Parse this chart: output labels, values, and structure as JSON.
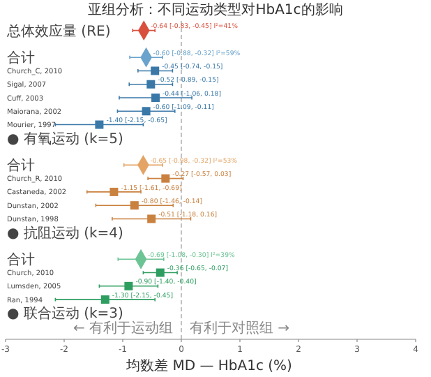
{
  "chart_data": {
    "type": "scatter",
    "orientation": "horizontal",
    "title": "亚组分析：不同运动类型对HbA1c的影响",
    "xlabel": "均数差 MD — HbA1c (%)",
    "annotations": [
      "← 有利于运动组",
      "有利于对照组 →"
    ],
    "categories": [
      "总体效应量 (RE)",
      null,
      "合计",
      "Church_C, 2010",
      "Sigal, 2007",
      "Cuff, 2003",
      "Maiorana, 2002",
      "Mourier, 1997",
      "● 有氧运动 (k=5)",
      null,
      "合计",
      "Church_R, 2010",
      "Castaneda, 2002",
      "Dunstan, 2002",
      "Dunstan, 1998",
      "● 抗阻运动 (k=4)",
      null,
      "合计",
      "Church, 2010",
      "Lumsden, 2005",
      "Ran, 1994",
      "● 联合运动 (k=3)"
    ],
    "series": [
      {
        "color": "#d94f3d",
        "marker": "diamond",
        "values": [
          -0.64,
          null,
          null,
          null,
          null,
          null,
          null,
          null,
          null,
          null,
          null,
          null,
          null,
          null,
          null,
          null,
          null,
          null,
          null,
          null,
          null,
          null
        ],
        "errors": [
          [
            -0.83,
            -0.45
          ],
          null,
          null,
          null,
          null,
          null,
          null,
          null,
          null,
          null,
          null,
          null,
          null,
          null,
          null,
          null,
          null,
          null,
          null,
          null,
          null,
          null
        ],
        "value_labels": [
          "-0.64 [-0.83, -0.45]  I²=41%",
          null,
          null,
          null,
          null,
          null,
          null,
          null,
          null,
          null,
          null,
          null,
          null,
          null,
          null,
          null,
          null,
          null,
          null,
          null,
          null,
          null
        ]
      },
      {
        "color": "#6aa3cc",
        "marker": "diamond",
        "values": [
          null,
          null,
          -0.6,
          null,
          null,
          null,
          null,
          null,
          null,
          null,
          null,
          null,
          null,
          null,
          null,
          null,
          null,
          null,
          null,
          null,
          null,
          null
        ],
        "errors": [
          null,
          null,
          [
            -0.88,
            -0.32
          ],
          null,
          null,
          null,
          null,
          null,
          null,
          null,
          null,
          null,
          null,
          null,
          null,
          null,
          null,
          null,
          null,
          null,
          null,
          null
        ],
        "value_labels": [
          null,
          null,
          "-0.60 [-0.88, -0.32]  I²=59%",
          null,
          null,
          null,
          null,
          null,
          null,
          null,
          null,
          null,
          null,
          null,
          null,
          null,
          null,
          null,
          null,
          null,
          null,
          null
        ]
      },
      {
        "color": "#3a78a8",
        "marker": "square",
        "values": [
          null,
          null,
          null,
          -0.45,
          -0.52,
          -0.44,
          -0.6,
          -1.4,
          null,
          null,
          null,
          null,
          null,
          null,
          null,
          null,
          null,
          null,
          null,
          null,
          null,
          null
        ],
        "errors": [
          null,
          null,
          null,
          [
            -0.74,
            -0.15
          ],
          [
            -0.89,
            -0.15
          ],
          [
            -1.06,
            0.18
          ],
          [
            -1.09,
            -0.11
          ],
          [
            -2.15,
            -0.65
          ],
          null,
          null,
          null,
          null,
          null,
          null,
          null,
          null,
          null,
          null,
          null,
          null,
          null,
          null
        ],
        "value_labels": [
          null,
          null,
          null,
          "-0.45 [-0.74, -0.15]",
          "-0.52 [-0.89, -0.15]",
          "-0.44 [-1.06, 0.18]",
          "-0.60 [-1.09, -0.11]",
          "-1.40 [-2.15, -0.65]",
          null,
          null,
          null,
          null,
          null,
          null,
          null,
          null,
          null,
          null,
          null,
          null,
          null,
          null
        ]
      },
      {
        "color": "#e3a465",
        "marker": "diamond",
        "values": [
          null,
          null,
          null,
          null,
          null,
          null,
          null,
          null,
          null,
          null,
          -0.65,
          null,
          null,
          null,
          null,
          null,
          null,
          null,
          null,
          null,
          null,
          null
        ],
        "errors": [
          null,
          null,
          null,
          null,
          null,
          null,
          null,
          null,
          null,
          null,
          [
            -0.98,
            -0.32
          ],
          null,
          null,
          null,
          null,
          null,
          null,
          null,
          null,
          null,
          null,
          null
        ],
        "value_labels": [
          null,
          null,
          null,
          null,
          null,
          null,
          null,
          null,
          null,
          null,
          "-0.65 [-0.98, -0.32]  I²=53%",
          null,
          null,
          null,
          null,
          null,
          null,
          null,
          null,
          null,
          null,
          null
        ]
      },
      {
        "color": "#c9813f",
        "marker": "square",
        "values": [
          null,
          null,
          null,
          null,
          null,
          null,
          null,
          null,
          null,
          null,
          null,
          -0.27,
          -1.15,
          -0.8,
          -0.51,
          null,
          null,
          null,
          null,
          null,
          null,
          null
        ],
        "errors": [
          null,
          null,
          null,
          null,
          null,
          null,
          null,
          null,
          null,
          null,
          null,
          [
            -0.57,
            0.03
          ],
          [
            -1.61,
            -0.69
          ],
          [
            -1.46,
            -0.14
          ],
          [
            -1.18,
            0.16
          ],
          null,
          null,
          null,
          null,
          null,
          null,
          null
        ],
        "value_labels": [
          null,
          null,
          null,
          null,
          null,
          null,
          null,
          null,
          null,
          null,
          null,
          "-0.27 [-0.57, 0.03]",
          "-1.15 [-1.61, -0.69]",
          "-0.80 [-1.46, -0.14]",
          "-0.51 [-1.18, 0.16]",
          null,
          null,
          null,
          null,
          null,
          null,
          null
        ]
      },
      {
        "color": "#6cc494",
        "marker": "diamond",
        "values": [
          null,
          null,
          null,
          null,
          null,
          null,
          null,
          null,
          null,
          null,
          null,
          null,
          null,
          null,
          null,
          null,
          null,
          -0.69,
          null,
          null,
          null,
          null
        ],
        "errors": [
          null,
          null,
          null,
          null,
          null,
          null,
          null,
          null,
          null,
          null,
          null,
          null,
          null,
          null,
          null,
          null,
          null,
          [
            -1.08,
            -0.3
          ],
          null,
          null,
          null,
          null
        ],
        "value_labels": [
          null,
          null,
          null,
          null,
          null,
          null,
          null,
          null,
          null,
          null,
          null,
          null,
          null,
          null,
          null,
          null,
          null,
          "-0.69 [-1.08, -0.30]  I²=39%",
          null,
          null,
          null,
          null
        ]
      },
      {
        "color": "#2e9e60",
        "marker": "square",
        "values": [
          null,
          null,
          null,
          null,
          null,
          null,
          null,
          null,
          null,
          null,
          null,
          null,
          null,
          null,
          null,
          null,
          null,
          null,
          -0.36,
          -0.9,
          -1.3,
          null
        ],
        "errors": [
          null,
          null,
          null,
          null,
          null,
          null,
          null,
          null,
          null,
          null,
          null,
          null,
          null,
          null,
          null,
          null,
          null,
          null,
          [
            -0.65,
            -0.07
          ],
          [
            -1.4,
            -0.4
          ],
          [
            -2.15,
            -0.45
          ],
          null
        ],
        "value_labels": [
          null,
          null,
          null,
          null,
          null,
          null,
          null,
          null,
          null,
          null,
          null,
          null,
          null,
          null,
          null,
          null,
          null,
          null,
          "-0.36 [-0.65, -0.07]",
          "-0.90 [-1.40, -0.40]",
          "-1.30 [-2.15, -0.45]",
          null
        ]
      }
    ],
    "xlim": [
      -3,
      4
    ],
    "xticks": [
      -3,
      -2,
      -1,
      0,
      1,
      2,
      3,
      4
    ],
    "ref_lines": [
      {
        "axis": "x",
        "value": 0,
        "line_style": "dashed",
        "color": "#999999"
      }
    ]
  }
}
